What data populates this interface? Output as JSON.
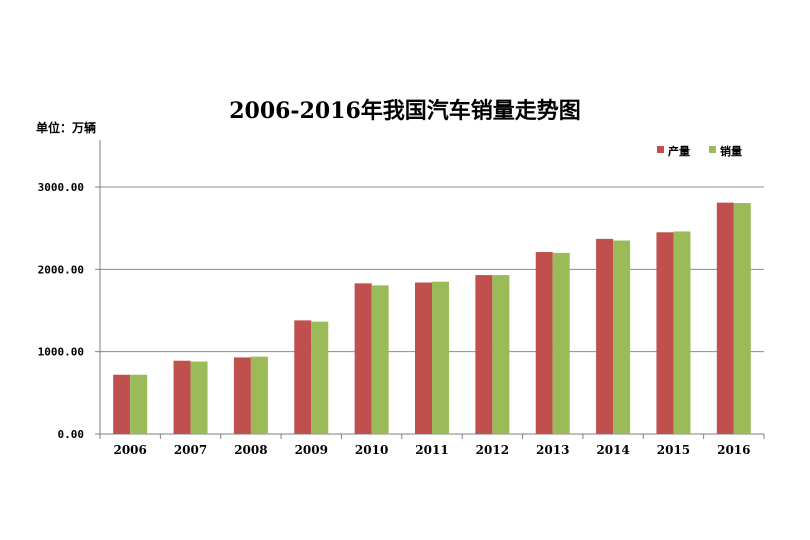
{
  "chart_data": {
    "type": "bar",
    "title": "2006-2016年我国汽车销量走势图",
    "unit_label": "单位：万辆",
    "categories": [
      "2006",
      "2007",
      "2008",
      "2009",
      "2010",
      "2011",
      "2012",
      "2013",
      "2014",
      "2015",
      "2016"
    ],
    "series": [
      {
        "name": "产量",
        "color": "#C0504D",
        "values": [
          720,
          890,
          930,
          1380,
          1830,
          1840,
          1930,
          2210,
          2370,
          2450,
          2810
        ]
      },
      {
        "name": "销量",
        "color": "#9BBB59",
        "values": [
          720,
          880,
          940,
          1365,
          1805,
          1850,
          1930,
          2200,
          2350,
          2460,
          2805
        ]
      }
    ],
    "y_ticks": [
      "0.00",
      "1000.00",
      "2000.00",
      "3000.00"
    ],
    "ylim": [
      0,
      3000
    ],
    "grid": true,
    "legend_position": "top-right"
  }
}
